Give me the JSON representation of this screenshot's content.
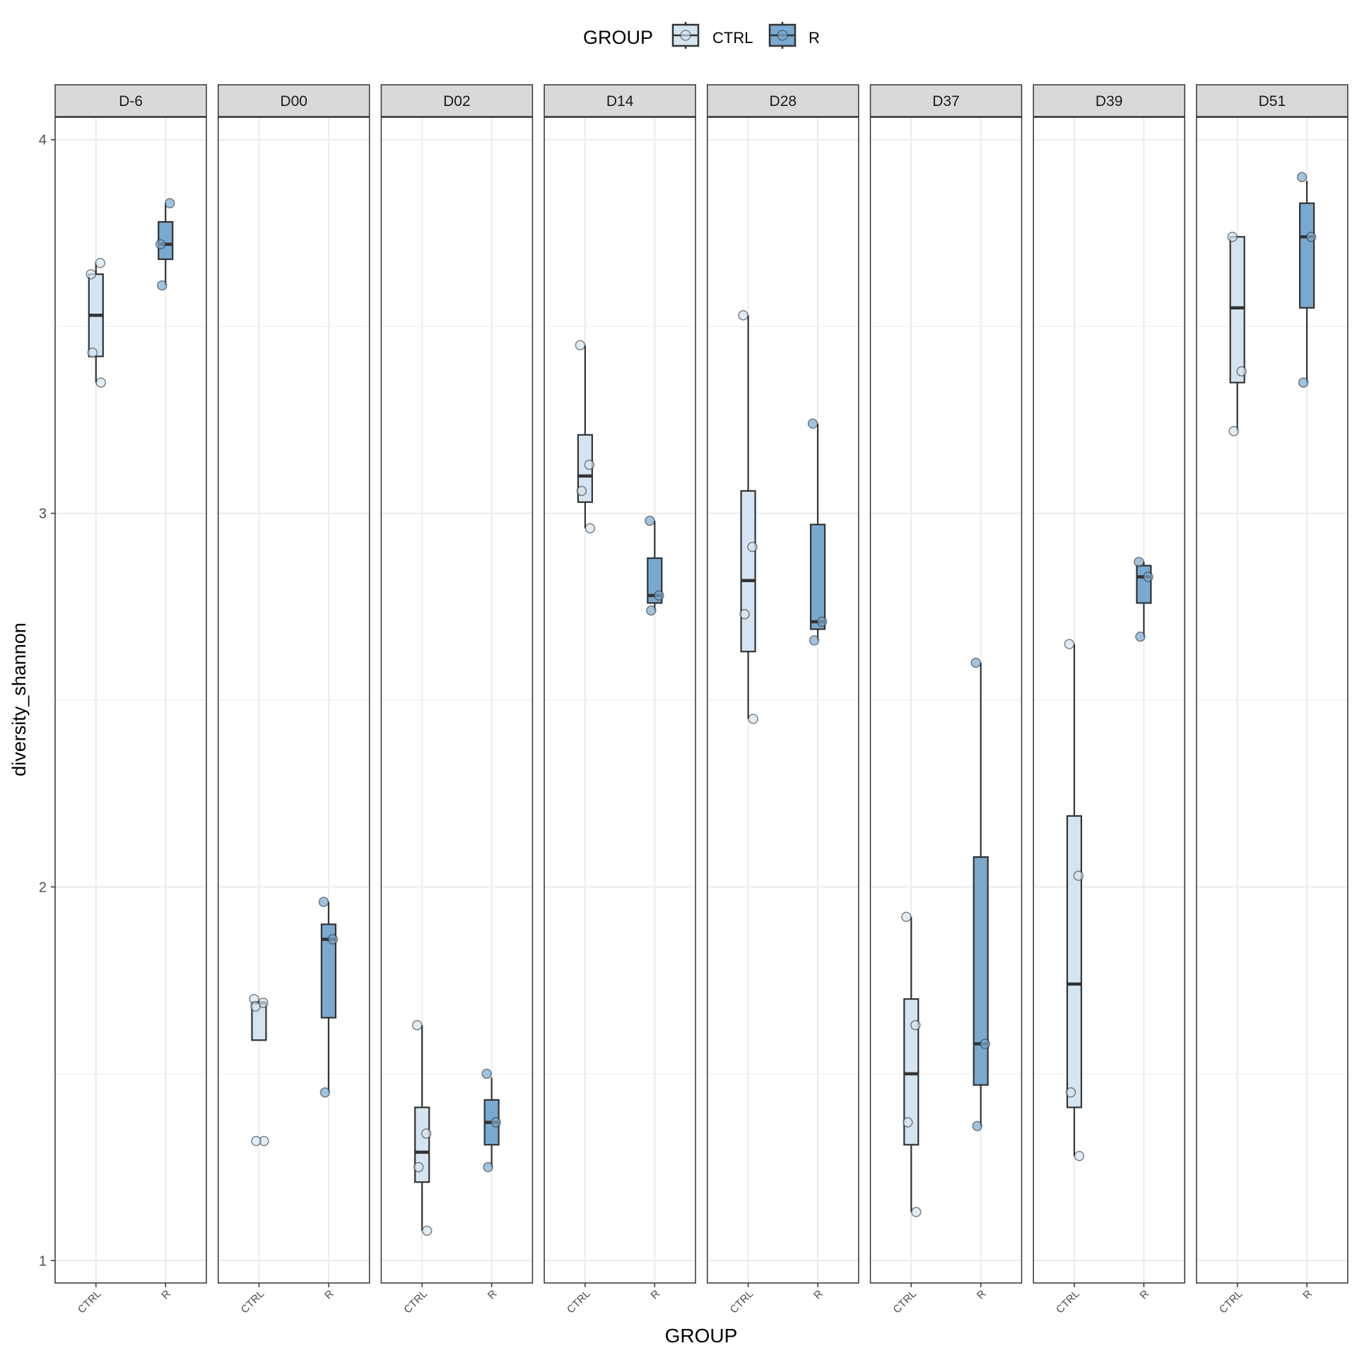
{
  "chart_data": {
    "type": "boxplot",
    "legend": {
      "title": "GROUP",
      "position": "top",
      "entries": [
        "CTRL",
        "R"
      ]
    },
    "xlabel": "GROUP",
    "ylabel": "diversity_shannon",
    "ylim": [
      0.94,
      4.06
    ],
    "y_ticks": [
      1,
      2,
      3,
      4
    ],
    "grid": true,
    "categories": [
      "CTRL",
      "R"
    ],
    "colors": {
      "CTRL": "#d4e4f1",
      "R": "#7aa9d0",
      "strip": "#d9d9d9",
      "grid": "#ebebeb",
      "border": "#333333",
      "box_line": "#333333"
    },
    "panels": [
      {
        "label": "D-6",
        "boxes": [
          {
            "group": "CTRL",
            "lower_whisker": 3.35,
            "q1": 3.42,
            "median": 3.53,
            "q3": 3.64,
            "upper_whisker": 3.67,
            "points": [
              3.64,
              3.67,
              3.43,
              3.35
            ]
          },
          {
            "group": "R",
            "lower_whisker": 3.61,
            "q1": 3.68,
            "median": 3.72,
            "q3": 3.78,
            "upper_whisker": 3.83,
            "points": [
              3.72,
              3.83,
              3.61
            ]
          }
        ]
      },
      {
        "label": "D00",
        "boxes": [
          {
            "group": "CTRL",
            "lower_whisker": 1.59,
            "q1": 1.59,
            "median": 1.69,
            "q3": 1.69,
            "upper_whisker": 1.69,
            "points": [
              1.7,
              1.69,
              1.68,
              1.32,
              1.32
            ]
          },
          {
            "group": "R",
            "lower_whisker": 1.45,
            "q1": 1.65,
            "median": 1.86,
            "q3": 1.9,
            "upper_whisker": 1.96,
            "points": [
              1.96,
              1.86,
              1.45
            ]
          }
        ]
      },
      {
        "label": "D02",
        "boxes": [
          {
            "group": "CTRL",
            "lower_whisker": 1.08,
            "q1": 1.21,
            "median": 1.29,
            "q3": 1.41,
            "upper_whisker": 1.63,
            "points": [
              1.63,
              1.34,
              1.25,
              1.08
            ]
          },
          {
            "group": "R",
            "lower_whisker": 1.25,
            "q1": 1.31,
            "median": 1.37,
            "q3": 1.43,
            "upper_whisker": 1.49,
            "points": [
              1.5,
              1.37,
              1.25
            ]
          }
        ]
      },
      {
        "label": "D14",
        "boxes": [
          {
            "group": "CTRL",
            "lower_whisker": 2.96,
            "q1": 3.03,
            "median": 3.1,
            "q3": 3.21,
            "upper_whisker": 3.45,
            "points": [
              3.45,
              3.13,
              3.06,
              2.96
            ]
          },
          {
            "group": "R",
            "lower_whisker": 2.74,
            "q1": 2.76,
            "median": 2.78,
            "q3": 2.88,
            "upper_whisker": 2.98,
            "points": [
              2.98,
              2.78,
              2.74
            ]
          }
        ]
      },
      {
        "label": "D28",
        "boxes": [
          {
            "group": "CTRL",
            "lower_whisker": 2.45,
            "q1": 2.63,
            "median": 2.82,
            "q3": 3.06,
            "upper_whisker": 3.53,
            "points": [
              3.53,
              2.91,
              2.73,
              2.45
            ]
          },
          {
            "group": "R",
            "lower_whisker": 2.66,
            "q1": 2.69,
            "median": 2.71,
            "q3": 2.97,
            "upper_whisker": 3.24,
            "points": [
              3.24,
              2.71,
              2.66
            ]
          }
        ]
      },
      {
        "label": "D37",
        "boxes": [
          {
            "group": "CTRL",
            "lower_whisker": 1.13,
            "q1": 1.31,
            "median": 1.5,
            "q3": 1.7,
            "upper_whisker": 1.92,
            "points": [
              1.92,
              1.63,
              1.37,
              1.13
            ]
          },
          {
            "group": "R",
            "lower_whisker": 1.36,
            "q1": 1.47,
            "median": 1.58,
            "q3": 2.08,
            "upper_whisker": 2.6,
            "points": [
              2.6,
              1.58,
              1.36
            ]
          }
        ]
      },
      {
        "label": "D39",
        "boxes": [
          {
            "group": "CTRL",
            "lower_whisker": 1.28,
            "q1": 1.41,
            "median": 1.74,
            "q3": 2.19,
            "upper_whisker": 2.65,
            "points": [
              2.65,
              2.03,
              1.45,
              1.28
            ]
          },
          {
            "group": "R",
            "lower_whisker": 2.67,
            "q1": 2.76,
            "median": 2.83,
            "q3": 2.86,
            "upper_whisker": 2.87,
            "points": [
              2.87,
              2.83,
              2.67
            ]
          }
        ]
      },
      {
        "label": "D51",
        "boxes": [
          {
            "group": "CTRL",
            "lower_whisker": 3.22,
            "q1": 3.35,
            "median": 3.55,
            "q3": 3.74,
            "upper_whisker": 3.74,
            "points": [
              3.74,
              3.38,
              3.22
            ]
          },
          {
            "group": "R",
            "lower_whisker": 3.35,
            "q1": 3.55,
            "median": 3.74,
            "q3": 3.83,
            "upper_whisker": 3.89,
            "points": [
              3.9,
              3.74,
              3.35
            ]
          }
        ]
      }
    ]
  }
}
